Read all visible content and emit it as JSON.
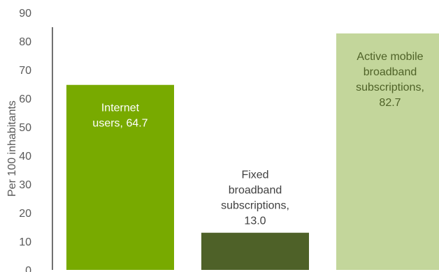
{
  "chart_data": {
    "type": "bar",
    "ylabel": "Per 100 inhabitants",
    "ylim": [
      0,
      90
    ],
    "yticks": [
      0,
      10,
      20,
      30,
      40,
      50,
      60,
      70,
      80,
      90
    ],
    "grid": false,
    "bars": [
      {
        "value": 64.7,
        "label_lines": [
          "Internet",
          "users, 64.7"
        ],
        "label_position": "inside-top",
        "color": "#78aa00",
        "label_color": "#ffffff"
      },
      {
        "value": 13.0,
        "label_lines": [
          "Fixed",
          "broadband",
          "subscriptions,",
          "13.0"
        ],
        "label_position": "above",
        "color": "#4e6128",
        "label_color": "#404040"
      },
      {
        "value": 82.7,
        "label_lines": [
          "Active mobile",
          "broadband",
          "subscriptions,",
          "82.7"
        ],
        "label_position": "inside-top",
        "color": "#c3d69b",
        "label_color": "#4f6228"
      }
    ]
  }
}
